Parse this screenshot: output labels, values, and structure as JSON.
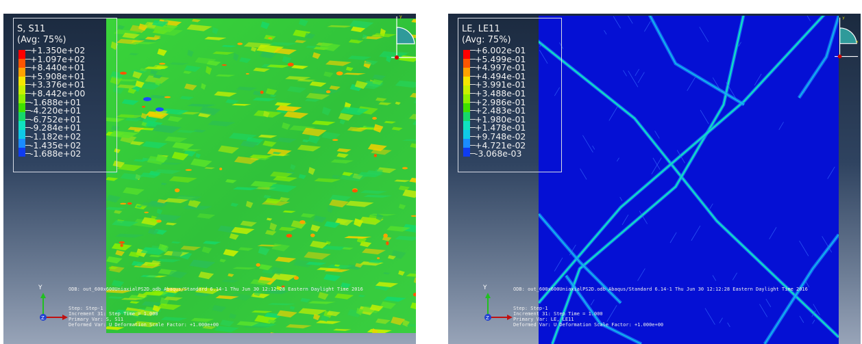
{
  "views": [
    {
      "id": "left",
      "legend": {
        "title": "S, S11",
        "avg": "(Avg: 75%)",
        "values": [
          "+1.350e+02",
          "+1.097e+02",
          "+8.440e+01",
          "+5.908e+01",
          "+3.376e+01",
          "+8.442e+00",
          "-1.688e+01",
          "-4.220e+01",
          "-6.752e+01",
          "-9.284e+01",
          "-1.182e+02",
          "-1.435e+02",
          "-1.688e+02"
        ]
      },
      "odb_line": "ODB: out_600x600UniaxialPS2D.odb    Abaqus/Standard 6.14-1    Thu Jun 30 12:12:28 Eastern Daylight Time 2016",
      "step_line": "Step: Step-1",
      "increment_line": "Increment     31: Step Time =    1.000",
      "primary_var": "Primary Var: S, S11",
      "deformed_var": "Deformed Var: U   Deformation Scale Factor: +1.000e+00",
      "triad": {
        "y": "Y",
        "x": "X",
        "z": "Z"
      },
      "viewcube": {
        "y": "y",
        "x": "x"
      }
    },
    {
      "id": "right",
      "legend": {
        "title": "LE, LE11",
        "avg": "(Avg: 75%)",
        "values": [
          "+6.002e-01",
          "+5.499e-01",
          "+4.997e-01",
          "+4.494e-01",
          "+3.991e-01",
          "+3.488e-01",
          "+2.986e-01",
          "+2.483e-01",
          "+1.980e-01",
          "+1.478e-01",
          "+9.748e-02",
          "+4.721e-02",
          "-3.068e-03"
        ]
      },
      "odb_line": "ODB: out_600x600UniaxialPS2D.odb    Abaqus/Standard 6.14-1    Thu Jun 30 12:12:28 Eastern Daylight Time 2016",
      "step_line": "Step: Step-1",
      "increment_line": "Increment     31: Step Time =    1.000",
      "primary_var": "Primary Var: LE, LE11",
      "deformed_var": "Deformed Var: U   Deformation Scale Factor: +1.000e+00",
      "triad": {
        "y": "Y",
        "x": "X",
        "z": "Z"
      },
      "viewcube": {
        "y": "y",
        "x": "x"
      }
    }
  ],
  "colors": {
    "contour_scale": [
      "#ff0000",
      "#ff5500",
      "#ffa200",
      "#f5e600",
      "#c8f000",
      "#8ff000",
      "#3fe000",
      "#16d96b",
      "#10e3c0",
      "#0fc9e8",
      "#1a8cff",
      "#0f3cf0",
      "#0000c8"
    ],
    "left_mesh_base": "#36c63a",
    "right_mesh_base": "#0512d6",
    "background_top": "#1b2a3f",
    "background_bottom": "#98a4b8"
  }
}
